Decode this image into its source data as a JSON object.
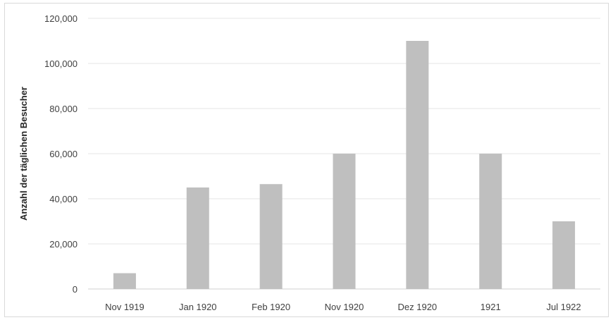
{
  "chart_data": {
    "type": "bar",
    "title": "",
    "xlabel": "",
    "ylabel": "Anzahl der täglichen Besucher",
    "categories": [
      "Nov 1919",
      "Jan 1920",
      "Feb 1920",
      "Nov 1920",
      "Dez 1920",
      "1921",
      "Jul 1922"
    ],
    "values": [
      7000,
      45000,
      46500,
      60000,
      110000,
      60000,
      30000
    ],
    "ylim": [
      0,
      120000
    ],
    "yticks": [
      "0",
      "20,000",
      "40,000",
      "60,000",
      "80,000",
      "100,000",
      "120,000"
    ],
    "grid": true,
    "legend": "none",
    "bar_color": "#bfbfbf",
    "grid_color": "#e6e6e6"
  }
}
